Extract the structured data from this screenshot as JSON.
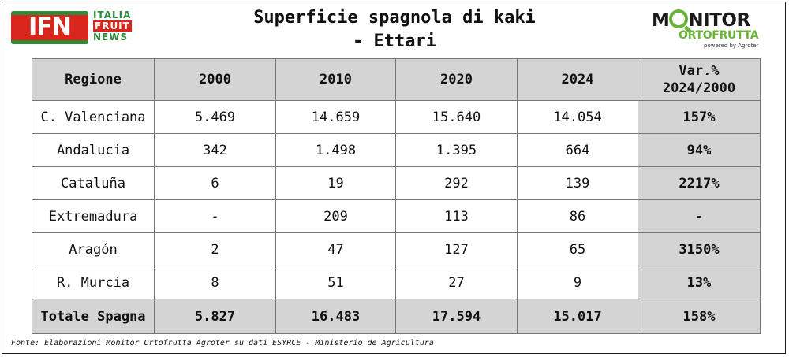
{
  "logo_ifn": {
    "letters": "IFN",
    "line1": "ITALIA",
    "line2": "FRUIT",
    "line3": "NEWS"
  },
  "title": {
    "line1": "Superficie spagnola di kaki",
    "line2": "- Ettari"
  },
  "logo_monitor": {
    "main_pre": "M",
    "main_post": "NITOR",
    "sub": "ORTOFRUTTA",
    "powered": "powered by Agroter"
  },
  "table": {
    "headers": [
      "Regione",
      "2000",
      "2010",
      "2020",
      "2024"
    ],
    "var_header_line1": "Var.%",
    "var_header_line2": "2024/2000",
    "rows": [
      {
        "region": "C. Valenciana",
        "y2000": "5.469",
        "y2010": "14.659",
        "y2020": "15.640",
        "y2024": "14.054",
        "var": "157%"
      },
      {
        "region": "Andalucia",
        "y2000": "342",
        "y2010": "1.498",
        "y2020": "1.395",
        "y2024": "664",
        "var": "94%"
      },
      {
        "region": "Cataluña",
        "y2000": "6",
        "y2010": "19",
        "y2020": "292",
        "y2024": "139",
        "var": "2217%"
      },
      {
        "region": "Extremadura",
        "y2000": "-",
        "y2010": "209",
        "y2020": "113",
        "y2024": "86",
        "var": "-"
      },
      {
        "region": "Aragón",
        "y2000": "2",
        "y2010": "47",
        "y2020": "127",
        "y2024": "65",
        "var": "3150%"
      },
      {
        "region": "R. Murcia",
        "y2000": "8",
        "y2010": "51",
        "y2020": "27",
        "y2024": "9",
        "var": "13%"
      }
    ],
    "total": {
      "region": "Totale Spagna",
      "y2000": "5.827",
      "y2010": "16.483",
      "y2020": "17.594",
      "y2024": "15.017",
      "var": "158%"
    }
  },
  "source": "Fonte: Elaborazioni Monitor Ortofrutta Agroter su dati ESYRCE - Ministerio de Agricultura",
  "colors": {
    "header_bg": "#d4d4d4",
    "ifn_red": "#d9261c",
    "ifn_green": "#2e8b3a",
    "monitor_green": "#6bb43a"
  }
}
